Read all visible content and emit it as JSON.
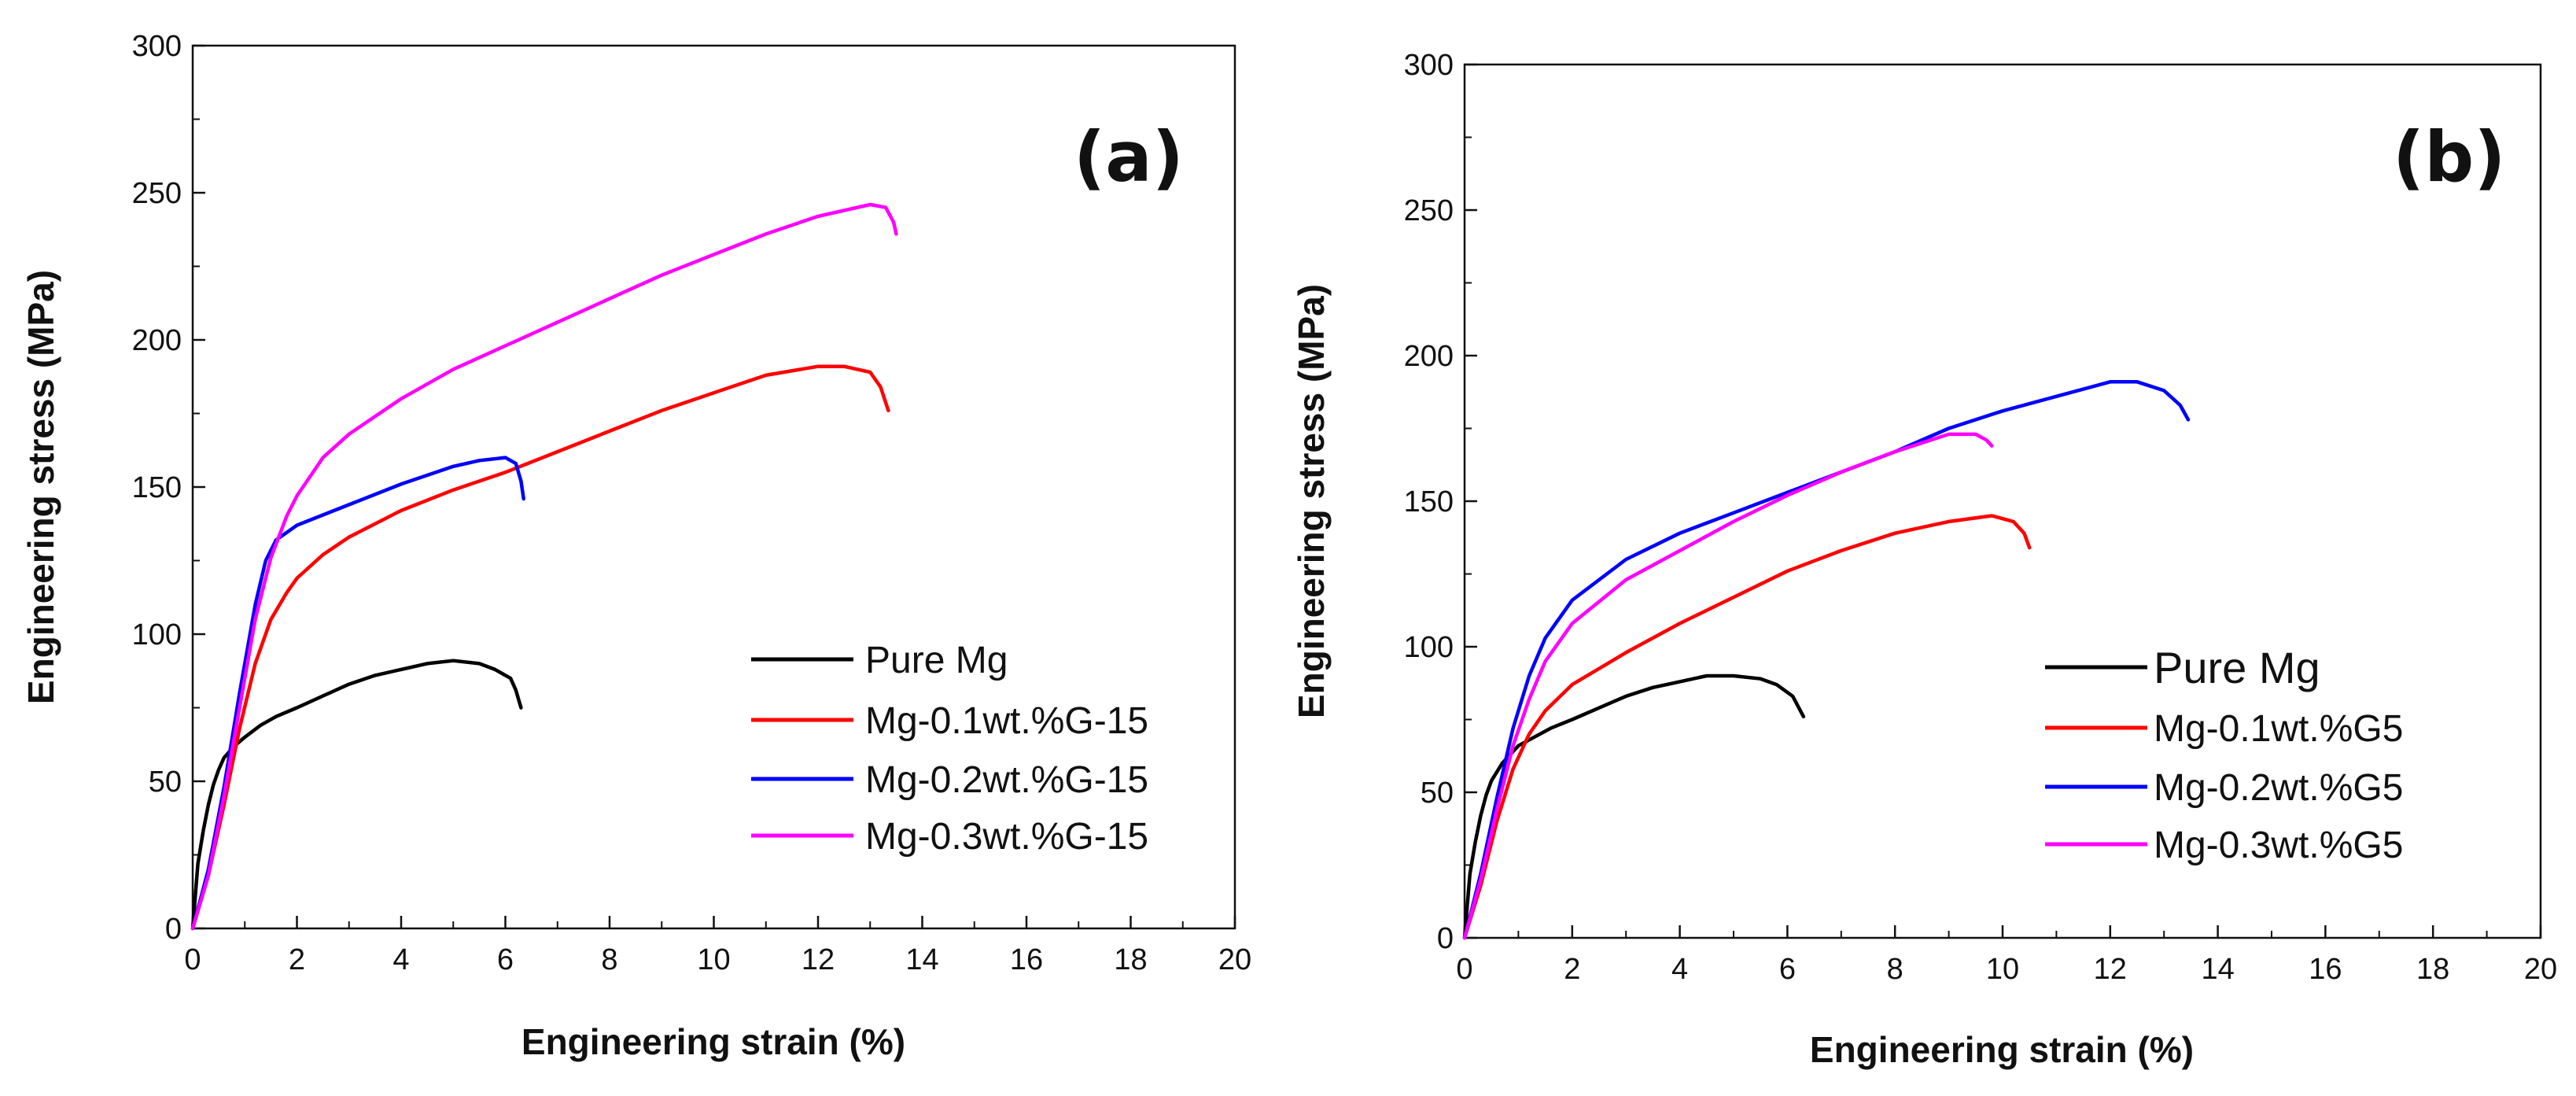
{
  "chart_data": [
    {
      "type": "line",
      "panel_label": "(a)",
      "xlabel": "Engineering strain (%)",
      "ylabel": "Engineering stress (MPa)",
      "xlim": [
        0,
        20
      ],
      "ylim": [
        0,
        300
      ],
      "xticks": [
        0,
        2,
        4,
        6,
        8,
        10,
        12,
        14,
        16,
        18,
        20
      ],
      "yticks": [
        0,
        50,
        100,
        150,
        200,
        250,
        300
      ],
      "legend_position": "lower-right",
      "series": [
        {
          "name": "Pure Mg",
          "color": "#000000",
          "points": [
            [
              0,
              0
            ],
            [
              0.1,
              22
            ],
            [
              0.2,
              33
            ],
            [
              0.3,
              42
            ],
            [
              0.4,
              49
            ],
            [
              0.5,
              54
            ],
            [
              0.6,
              58
            ],
            [
              0.8,
              62
            ],
            [
              1.0,
              65
            ],
            [
              1.3,
              69
            ],
            [
              1.6,
              72
            ],
            [
              2,
              75
            ],
            [
              2.5,
              79
            ],
            [
              3,
              83
            ],
            [
              3.5,
              86
            ],
            [
              4,
              88
            ],
            [
              4.5,
              90
            ],
            [
              5,
              91
            ],
            [
              5.5,
              90
            ],
            [
              5.8,
              88
            ],
            [
              6.1,
              85
            ],
            [
              6.2,
              81
            ],
            [
              6.3,
              75
            ]
          ]
        },
        {
          "name": "Mg-0.1wt.%G-15",
          "color": "#ff0000",
          "points": [
            [
              0,
              0
            ],
            [
              0.3,
              18
            ],
            [
              0.6,
              42
            ],
            [
              0.9,
              68
            ],
            [
              1.2,
              90
            ],
            [
              1.5,
              105
            ],
            [
              1.8,
              114
            ],
            [
              2,
              119
            ],
            [
              2.5,
              127
            ],
            [
              3,
              133
            ],
            [
              4,
              142
            ],
            [
              5,
              149
            ],
            [
              6,
              155
            ],
            [
              7,
              162
            ],
            [
              8,
              169
            ],
            [
              9,
              176
            ],
            [
              10,
              182
            ],
            [
              11,
              188
            ],
            [
              12,
              191
            ],
            [
              12.5,
              191
            ],
            [
              13,
              189
            ],
            [
              13.2,
              184
            ],
            [
              13.35,
              176
            ]
          ]
        },
        {
          "name": "Mg-0.2wt.%G-15",
          "color": "#0000ff",
          "points": [
            [
              0,
              0
            ],
            [
              0.3,
              20
            ],
            [
              0.6,
              48
            ],
            [
              0.9,
              80
            ],
            [
              1.2,
              110
            ],
            [
              1.4,
              125
            ],
            [
              1.6,
              132
            ],
            [
              2,
              137
            ],
            [
              3,
              144
            ],
            [
              4,
              151
            ],
            [
              5,
              157
            ],
            [
              5.5,
              159
            ],
            [
              6,
              160
            ],
            [
              6.2,
              158
            ],
            [
              6.3,
              152
            ],
            [
              6.35,
              146
            ]
          ]
        },
        {
          "name": "Mg-0.3wt.%G-15",
          "color": "#ff00ff",
          "points": [
            [
              0,
              0
            ],
            [
              0.3,
              18
            ],
            [
              0.6,
              45
            ],
            [
              0.9,
              75
            ],
            [
              1.2,
              105
            ],
            [
              1.5,
              126
            ],
            [
              1.8,
              140
            ],
            [
              2,
              147
            ],
            [
              2.5,
              160
            ],
            [
              3,
              168
            ],
            [
              4,
              180
            ],
            [
              5,
              190
            ],
            [
              6,
              198
            ],
            [
              7,
              206
            ],
            [
              8,
              214
            ],
            [
              9,
              222
            ],
            [
              10,
              229
            ],
            [
              11,
              236
            ],
            [
              12,
              242
            ],
            [
              13,
              246
            ],
            [
              13.3,
              245
            ],
            [
              13.45,
              240
            ],
            [
              13.5,
              236
            ]
          ]
        }
      ]
    },
    {
      "type": "line",
      "panel_label": "(b)",
      "xlabel": "Engineering strain (%)",
      "ylabel": "Engineering stress (MPa)",
      "xlim": [
        0,
        20
      ],
      "ylim": [
        0,
        300
      ],
      "xticks": [
        0,
        2,
        4,
        6,
        8,
        10,
        12,
        14,
        16,
        18,
        20
      ],
      "yticks": [
        0,
        50,
        100,
        150,
        200,
        250,
        300
      ],
      "legend_position": "lower-right",
      "series": [
        {
          "name": "Pure Mg",
          "color": "#000000",
          "points": [
            [
              0,
              0
            ],
            [
              0.1,
              22
            ],
            [
              0.2,
              33
            ],
            [
              0.3,
              42
            ],
            [
              0.4,
              49
            ],
            [
              0.5,
              54
            ],
            [
              0.7,
              60
            ],
            [
              1.0,
              66
            ],
            [
              1.3,
              69
            ],
            [
              1.6,
              72
            ],
            [
              2,
              75
            ],
            [
              2.5,
              79
            ],
            [
              3,
              83
            ],
            [
              3.5,
              86
            ],
            [
              4,
              88
            ],
            [
              4.5,
              90
            ],
            [
              5,
              90
            ],
            [
              5.5,
              89
            ],
            [
              5.8,
              87
            ],
            [
              6.1,
              83
            ],
            [
              6.3,
              76
            ]
          ]
        },
        {
          "name": "Mg-0.1wt.%G5",
          "color": "#ff0000",
          "points": [
            [
              0,
              0
            ],
            [
              0.3,
              18
            ],
            [
              0.6,
              40
            ],
            [
              0.9,
              58
            ],
            [
              1.2,
              70
            ],
            [
              1.5,
              78
            ],
            [
              2,
              87
            ],
            [
              3,
              98
            ],
            [
              4,
              108
            ],
            [
              5,
              117
            ],
            [
              6,
              126
            ],
            [
              7,
              133
            ],
            [
              8,
              139
            ],
            [
              9,
              143
            ],
            [
              9.8,
              145
            ],
            [
              10.2,
              143
            ],
            [
              10.4,
              139
            ],
            [
              10.5,
              134
            ]
          ]
        },
        {
          "name": "Mg-0.2wt.%G5",
          "color": "#0000ff",
          "points": [
            [
              0,
              0
            ],
            [
              0.3,
              22
            ],
            [
              0.6,
              48
            ],
            [
              0.9,
              72
            ],
            [
              1.2,
              90
            ],
            [
              1.5,
              103
            ],
            [
              2,
              116
            ],
            [
              3,
              130
            ],
            [
              4,
              139
            ],
            [
              5,
              146
            ],
            [
              6,
              153
            ],
            [
              7,
              160
            ],
            [
              8,
              167
            ],
            [
              9,
              175
            ],
            [
              10,
              181
            ],
            [
              11,
              186
            ],
            [
              12,
              191
            ],
            [
              12.5,
              191
            ],
            [
              13,
              188
            ],
            [
              13.3,
              183
            ],
            [
              13.45,
              178
            ]
          ]
        },
        {
          "name": "Mg-0.3wt.%G5",
          "color": "#ff00ff",
          "points": [
            [
              0,
              0
            ],
            [
              0.3,
              20
            ],
            [
              0.6,
              44
            ],
            [
              0.9,
              66
            ],
            [
              1.2,
              82
            ],
            [
              1.5,
              95
            ],
            [
              2,
              108
            ],
            [
              3,
              123
            ],
            [
              4,
              133
            ],
            [
              5,
              143
            ],
            [
              6,
              152
            ],
            [
              7,
              160
            ],
            [
              8,
              167
            ],
            [
              9,
              173
            ],
            [
              9.5,
              173
            ],
            [
              9.7,
              171
            ],
            [
              9.8,
              169
            ]
          ]
        }
      ]
    }
  ]
}
